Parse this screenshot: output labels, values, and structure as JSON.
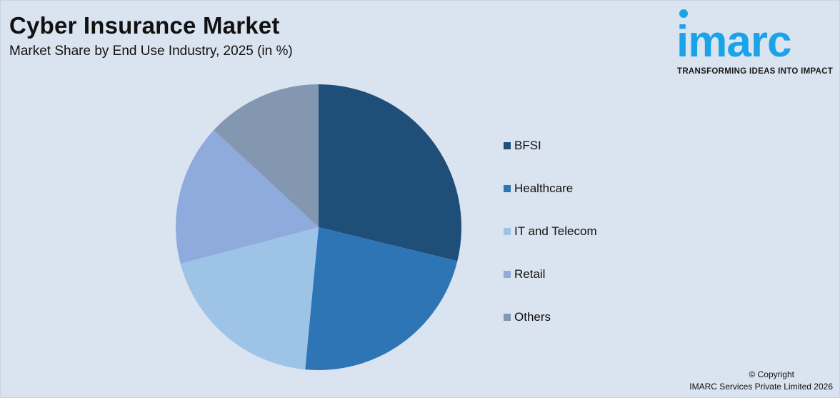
{
  "header": {
    "title": "Cyber Insurance Market",
    "subtitle": "Market Share by End Use Industry, 2025 (in %)"
  },
  "logo": {
    "word": "imarc",
    "tagline": "TRANSFORMING IDEAS INTO IMPACT",
    "color": "#1aa3e8"
  },
  "chart_data": {
    "type": "pie",
    "title": "Cyber Insurance Market",
    "subtitle": "Market Share by End Use Industry, 2025 (in %)",
    "legend_position": "right",
    "slices": [
      {
        "label": "BFSI",
        "value": 28.8,
        "color": "#1f4e79"
      },
      {
        "label": "Healthcare",
        "value": 22.7,
        "color": "#2e75b6"
      },
      {
        "label": "IT and Telecom",
        "value": 19.4,
        "color": "#9dc3e6"
      },
      {
        "label": "Retail",
        "value": 16.0,
        "color": "#8faadc"
      },
      {
        "label": "Others",
        "value": 13.1,
        "color": "#8497b0"
      }
    ]
  },
  "footer": {
    "copyright_line1": "© Copyright",
    "copyright_line2": "IMARC Services Private Limited 2026"
  }
}
